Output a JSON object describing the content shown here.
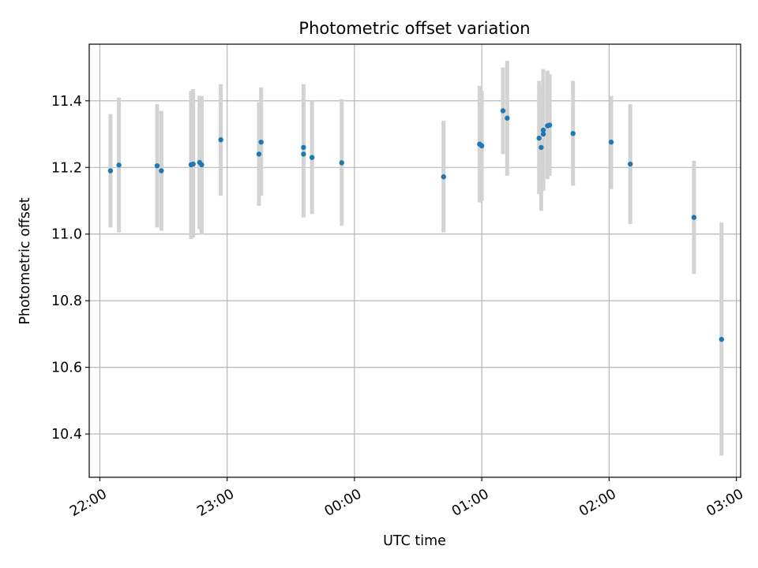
{
  "chart_data": {
    "type": "scatter",
    "title": "Photometric offset variation",
    "xlabel": "UTC time",
    "ylabel": "Photometric offset",
    "x_unit": "UTC hh:mm, times after 24:00 fall past midnight",
    "xlim": [
      "21:55",
      "03:02"
    ],
    "ylim": [
      10.27,
      11.57
    ],
    "x_ticks": [
      {
        "t": "22:00",
        "label": "22:00"
      },
      {
        "t": "23:00",
        "label": "23:00"
      },
      {
        "t": "00:00",
        "label": "00:00"
      },
      {
        "t": "01:00",
        "label": "01:00"
      },
      {
        "t": "02:00",
        "label": "02:00"
      },
      {
        "t": "03:00",
        "label": "03:00"
      }
    ],
    "y_ticks": [
      10.4,
      10.6,
      10.8,
      11.0,
      11.2,
      11.4
    ],
    "grid": true,
    "legend": "none",
    "colors": {
      "point": "#1f77b4",
      "errorbar": "#d3d3d3",
      "grid": "#b0b0b0"
    },
    "points": [
      {
        "t": "22:05",
        "y": 11.19,
        "ylo": 11.02,
        "yhi": 11.36
      },
      {
        "t": "22:09",
        "y": 11.207,
        "ylo": 11.005,
        "yhi": 11.41
      },
      {
        "t": "22:27",
        "y": 11.205,
        "ylo": 11.02,
        "yhi": 11.39
      },
      {
        "t": "22:29",
        "y": 11.19,
        "ylo": 11.01,
        "yhi": 11.37
      },
      {
        "t": "22:43",
        "y": 11.208,
        "ylo": 10.985,
        "yhi": 11.43
      },
      {
        "t": "22:44",
        "y": 11.21,
        "ylo": 10.99,
        "yhi": 11.435
      },
      {
        "t": "22:47",
        "y": 11.215,
        "ylo": 11.015,
        "yhi": 11.415
      },
      {
        "t": "22:48",
        "y": 11.208,
        "ylo": 11.0,
        "yhi": 11.415
      },
      {
        "t": "22:57",
        "y": 11.283,
        "ylo": 11.115,
        "yhi": 11.45
      },
      {
        "t": "23:15",
        "y": 11.24,
        "ylo": 11.085,
        "yhi": 11.395
      },
      {
        "t": "23:16",
        "y": 11.276,
        "ylo": 11.115,
        "yhi": 11.44
      },
      {
        "t": "23:36",
        "y": 11.26,
        "ylo": 11.05,
        "yhi": 11.45
      },
      {
        "t": "23:36",
        "y": 11.24,
        "ylo": 11.05,
        "yhi": 11.43
      },
      {
        "t": "23:40",
        "y": 11.23,
        "ylo": 11.06,
        "yhi": 11.4
      },
      {
        "t": "23:54",
        "y": 11.214,
        "ylo": 11.025,
        "yhi": 11.405
      },
      {
        "t": "24:42",
        "y": 11.172,
        "ylo": 11.005,
        "yhi": 11.34
      },
      {
        "t": "24:59",
        "y": 11.27,
        "ylo": 11.095,
        "yhi": 11.445
      },
      {
        "t": "25:00",
        "y": 11.265,
        "ylo": 11.1,
        "yhi": 11.43
      },
      {
        "t": "25:10",
        "y": 11.37,
        "ylo": 11.24,
        "yhi": 11.5
      },
      {
        "t": "25:12",
        "y": 11.348,
        "ylo": 11.175,
        "yhi": 11.52
      },
      {
        "t": "25:27",
        "y": 11.288,
        "ylo": 11.12,
        "yhi": 11.46
      },
      {
        "t": "25:28",
        "y": 11.26,
        "ylo": 11.07,
        "yhi": 11.445
      },
      {
        "t": "25:29",
        "y": 11.312,
        "ylo": 11.13,
        "yhi": 11.495
      },
      {
        "t": "25:29",
        "y": 11.3,
        "ylo": 11.14,
        "yhi": 11.47
      },
      {
        "t": "25:31",
        "y": 11.325,
        "ylo": 11.165,
        "yhi": 11.49
      },
      {
        "t": "25:32",
        "y": 11.327,
        "ylo": 11.175,
        "yhi": 11.48
      },
      {
        "t": "25:43",
        "y": 11.302,
        "ylo": 11.145,
        "yhi": 11.46
      },
      {
        "t": "26:01",
        "y": 11.276,
        "ylo": 11.135,
        "yhi": 11.415
      },
      {
        "t": "26:10",
        "y": 11.21,
        "ylo": 11.03,
        "yhi": 11.39
      },
      {
        "t": "26:40",
        "y": 11.05,
        "ylo": 10.88,
        "yhi": 11.22
      },
      {
        "t": "26:53",
        "y": 10.684,
        "ylo": 10.335,
        "yhi": 11.035
      }
    ]
  }
}
